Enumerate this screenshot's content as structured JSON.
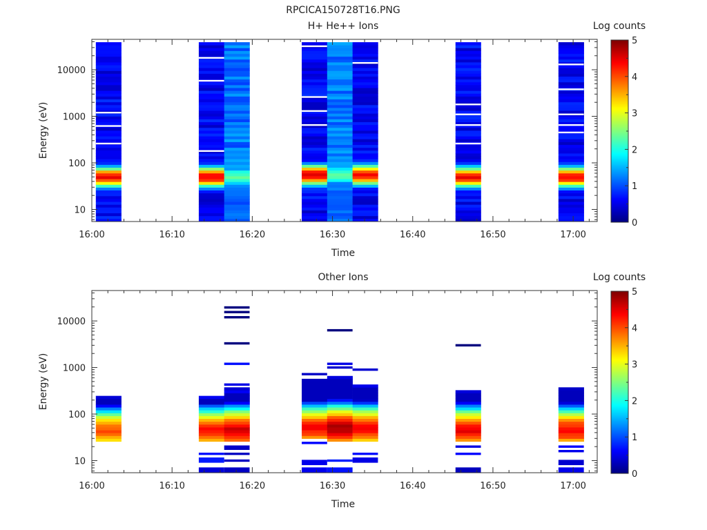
{
  "figure_title": "RPCICA150728T16.PNG",
  "colormap": [
    "#00007f",
    "#0000ff",
    "#007fff",
    "#00ffff",
    "#7fff7f",
    "#ffff00",
    "#ff7f00",
    "#ff0000",
    "#7f0000"
  ],
  "chart_data": [
    {
      "type": "heatmap",
      "title": "H+ He++ Ions",
      "xlabel": "Time",
      "ylabel": "Energy (eV)",
      "y_scale": "log",
      "ylim": [
        5.5,
        45000
      ],
      "xlim_minutes": [
        0,
        63
      ],
      "x_ticks": [
        "16:00",
        "16:10",
        "16:20",
        "16:30",
        "16:40",
        "16:50",
        "17:00"
      ],
      "y_ticks": [
        "10",
        "100",
        "1000",
        "10000"
      ],
      "colorbar": {
        "label": "Log counts",
        "range": [
          0,
          5
        ],
        "ticks": [
          "0",
          "1",
          "2",
          "3",
          "4",
          "5"
        ]
      },
      "scans": [
        {
          "start": "16:00:30",
          "end": "16:03:40",
          "peak_energy": 50,
          "peak_level": 4.4,
          "bg_level": 0.6,
          "top": 38000,
          "bottom": 5.5,
          "gap_energies": [
            1200,
            260,
            620
          ]
        },
        {
          "start": "16:13:20",
          "end": "16:16:30",
          "peak_energy": 50,
          "peak_level": 4.4,
          "bg_level": 0.6,
          "top": 40000,
          "bottom": 5.5,
          "gap_energies": [
            18000,
            5800,
            180
          ]
        },
        {
          "start": "16:16:30",
          "end": "16:19:40",
          "peak_energy": 50,
          "peak_level": 2.4,
          "bg_level": 1.2,
          "top": 40000,
          "bottom": 5.5,
          "gap_energies": []
        },
        {
          "start": "16:26:10",
          "end": "16:29:20",
          "peak_energy": 55,
          "peak_level": 4.6,
          "bg_level": 0.6,
          "top": 40000,
          "bottom": 5.5,
          "gap_energies": [
            32000,
            2600,
            1300,
            650
          ]
        },
        {
          "start": "16:29:20",
          "end": "16:32:30",
          "peak_energy": 55,
          "peak_level": 2.3,
          "bg_level": 1.2,
          "top": 40000,
          "bottom": 5.5,
          "gap_energies": []
        },
        {
          "start": "16:32:30",
          "end": "16:35:40",
          "peak_energy": 55,
          "peak_level": 4.4,
          "bg_level": 0.6,
          "top": 40000,
          "bottom": 5.5,
          "gap_energies": [
            14000
          ]
        },
        {
          "start": "16:45:20",
          "end": "16:48:30",
          "peak_energy": 50,
          "peak_level": 4.4,
          "bg_level": 0.6,
          "top": 40000,
          "bottom": 5.5,
          "gap_energies": [
            1800,
            1100,
            650,
            260
          ]
        },
        {
          "start": "16:58:10",
          "end": "17:01:20",
          "peak_energy": 50,
          "peak_level": 4.4,
          "bg_level": 0.6,
          "top": 40000,
          "bottom": 5.5,
          "gap_energies": [
            13000,
            3800,
            1100,
            650,
            450
          ]
        }
      ]
    },
    {
      "type": "heatmap",
      "title": "Other Ions",
      "xlabel": "Time",
      "ylabel": "Energy (eV)",
      "y_scale": "log",
      "ylim": [
        5.5,
        45000
      ],
      "xlim_minutes": [
        0,
        63
      ],
      "x_ticks": [
        "16:00",
        "16:10",
        "16:20",
        "16:30",
        "16:40",
        "16:50",
        "17:00"
      ],
      "y_ticks": [
        "10",
        "100",
        "1000",
        "10000"
      ],
      "colorbar": {
        "label": "Log counts",
        "range": [
          0,
          5
        ],
        "ticks": [
          "0",
          "1",
          "2",
          "3",
          "4",
          "5"
        ]
      },
      "scans": [
        {
          "start": "16:00:30",
          "end": "16:03:40",
          "band_low": 26,
          "band_high": 250,
          "peak_energy": 45,
          "peak_level": 4.0,
          "isolated": []
        },
        {
          "start": "16:13:20",
          "end": "16:16:30",
          "band_low": 25,
          "band_high": 250,
          "peak_energy": 45,
          "peak_level": 4.3,
          "isolated": [
            5.5,
            9,
            14
          ]
        },
        {
          "start": "16:16:30",
          "end": "16:19:40",
          "band_low": 25,
          "band_high": 350,
          "peak_energy": 45,
          "peak_level": 4.6,
          "isolated": [
            5.5,
            10,
            14,
            18,
            20,
            430,
            1200,
            3300,
            12000,
            15500,
            19500
          ]
        },
        {
          "start": "16:26:10",
          "end": "16:29:20",
          "band_low": 30,
          "band_high": 550,
          "peak_energy": 50,
          "peak_level": 4.4,
          "isolated": [
            5.5,
            8,
            24,
            720
          ]
        },
        {
          "start": "16:29:20",
          "end": "16:32:30",
          "band_low": 26,
          "band_high": 650,
          "peak_energy": 50,
          "peak_level": 4.8,
          "isolated": [
            5.5,
            10,
            1000,
            1200,
            6300
          ]
        },
        {
          "start": "16:32:30",
          "end": "16:35:40",
          "band_low": 26,
          "band_high": 450,
          "peak_energy": 50,
          "peak_level": 4.4,
          "isolated": [
            9,
            14,
            900
          ]
        },
        {
          "start": "16:45:20",
          "end": "16:48:30",
          "band_low": 26,
          "band_high": 320,
          "peak_energy": 45,
          "peak_level": 4.5,
          "isolated": [
            5.5,
            14,
            20,
            3000
          ]
        },
        {
          "start": "16:58:10",
          "end": "17:01:20",
          "band_low": 26,
          "band_high": 350,
          "peak_energy": 45,
          "peak_level": 4.4,
          "isolated": [
            5.5,
            8,
            16,
            20
          ]
        }
      ]
    }
  ]
}
